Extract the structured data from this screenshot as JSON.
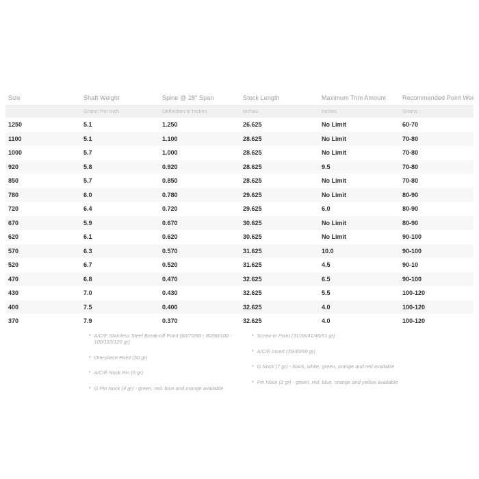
{
  "table": {
    "headers": [
      "Size",
      "Shaft Weight",
      "Spine @ 28\" Span",
      "Stock Length",
      "Maximum Trim Amount",
      "Recommended Point Weight Range"
    ],
    "subheaders": [
      "",
      "Grains Per Inch",
      "Deflection in Inches",
      "Inches",
      "Inches",
      "Grains"
    ],
    "rows": [
      [
        "1250",
        "5.1",
        "1.250",
        "26.625",
        "No Limit",
        "60-70"
      ],
      [
        "1100",
        "5.1",
        "1.100",
        "28.625",
        "No Limit",
        "70-80"
      ],
      [
        "1000",
        "5.7",
        "1.000",
        "28.625",
        "No Limit",
        "70-80"
      ],
      [
        "920",
        "5.8",
        "0.920",
        "28.625",
        "9.5",
        "70-80"
      ],
      [
        "850",
        "5.7",
        "0.850",
        "28.625",
        "No Limit",
        "70-80"
      ],
      [
        "780",
        "6.0",
        "0.780",
        "29.625",
        "No Limit",
        "80-90"
      ],
      [
        "720",
        "6.4",
        "0.720",
        "29.625",
        "6.0",
        "80-90"
      ],
      [
        "670",
        "5.9",
        "0.670",
        "30.625",
        "No Limit",
        "80-90"
      ],
      [
        "620",
        "6.1",
        "0.620",
        "30.625",
        "No Limit",
        "90-100"
      ],
      [
        "570",
        "6.3",
        "0.570",
        "31.625",
        "10.0",
        "90-100"
      ],
      [
        "520",
        "6.7",
        "0.520",
        "31.625",
        "4.5",
        "90-10"
      ],
      [
        "470",
        "6.8",
        "0.470",
        "32.625",
        "6.5",
        "90-100"
      ],
      [
        "430",
        "7.0",
        "0.430",
        "32.625",
        "5.5",
        "100-120"
      ],
      [
        "400",
        "7.5",
        "0.400",
        "32.625",
        "4.0",
        "100-120"
      ],
      [
        "370",
        "7.9",
        "0.370",
        "32.625",
        "4.0",
        "100-120"
      ]
    ]
  },
  "footnotes": {
    "left": [
      "A/C/E Stainless Steel Break-off Point (60/70/80 - 80/90/100 - 100/110/120 gr)",
      "One-piece Point (50 gr)",
      "A/C/E Nock Pin (5 gr)",
      "G Pin Nock (4 gr) - green, red, blue and orange available"
    ],
    "right": [
      "Screw-in Point (31/36/41/46/51 gr)",
      "A/C/E Insert (39/49/59 gr)",
      "G Nock (7 gr) - black, white, green, orange and red available",
      "Pin Nock (2 gr) - green, red, blue, orange and yellow available"
    ]
  },
  "colors": {
    "header_text": "#9b9b9b",
    "unit_text": "#bcbcbc",
    "data_text": "#2e2e2e",
    "stripe_bg": "#f7f7f7",
    "unit_row_bg": "#f1f1f1",
    "footnote_text": "#a8a8a8",
    "bullet": "•"
  }
}
